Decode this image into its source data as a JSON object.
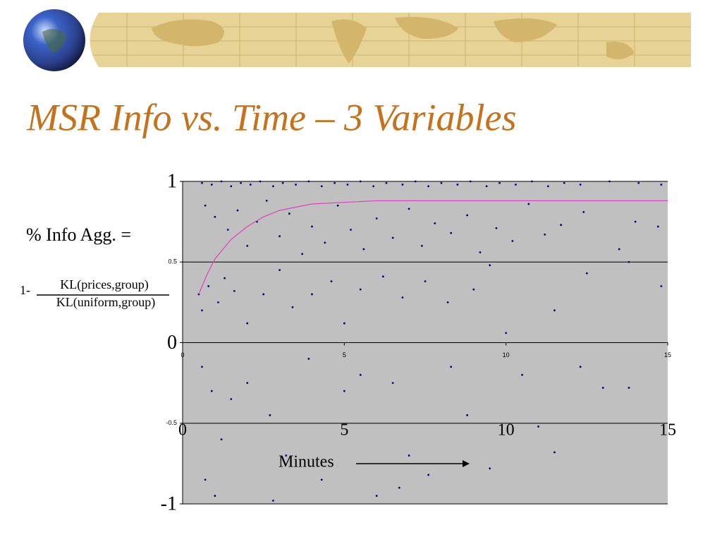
{
  "chart_data": {
    "type": "scatter",
    "title": "MSR Info vs. Time – 3 Variables",
    "y_label": "% Info Agg. =",
    "formula_prefix": "1-",
    "formula_numerator": "KL(prices,group)",
    "formula_denominator": "KL(uniform,group)",
    "x_label": "Minutes",
    "xlim": [
      0,
      15
    ],
    "ylim": [
      -1,
      1
    ],
    "xticks": [
      0,
      5,
      10,
      15
    ],
    "yticks": [
      -1,
      -0.5,
      0,
      0.5,
      1
    ],
    "grid": true,
    "series": [
      {
        "kind": "points",
        "color": "#000080",
        "x": [
          0.6,
          0.9,
          1.2,
          1.5,
          1.8,
          2.1,
          2.4,
          2.8,
          3.1,
          3.5,
          3.9,
          4.3,
          4.7,
          5.1,
          5.5,
          5.9,
          6.3,
          6.8,
          7.2,
          7.6,
          8.0,
          8.5,
          8.9,
          9.4,
          9.8,
          10.3,
          10.8,
          11.3,
          11.8,
          12.3,
          13.2,
          14.1,
          14.8,
          0.7,
          1.0,
          1.4,
          1.7,
          2.0,
          2.3,
          2.6,
          3.0,
          3.3,
          3.7,
          4.0,
          4.4,
          4.8,
          5.2,
          5.6,
          6.0,
          6.5,
          7.0,
          7.4,
          7.8,
          8.3,
          8.8,
          9.2,
          9.7,
          10.2,
          10.7,
          11.2,
          11.7,
          12.4,
          13.5,
          14.0,
          14.7,
          0.5,
          0.6,
          0.8,
          1.1,
          1.3,
          1.6,
          2.0,
          2.5,
          3.0,
          3.4,
          4.0,
          4.6,
          5.0,
          5.5,
          6.2,
          6.8,
          7.5,
          8.2,
          9.0,
          9.5,
          10.0,
          11.5,
          12.5,
          13.8,
          14.8,
          0.6,
          0.9,
          1.2,
          1.5,
          2.0,
          2.7,
          3.2,
          3.9,
          4.3,
          5.0,
          5.5,
          6.0,
          6.5,
          7.0,
          7.6,
          8.3,
          8.8,
          9.5,
          10.5,
          11.0,
          11.5,
          12.3,
          13.0,
          13.8,
          0.7,
          1.0,
          2.8,
          6.7
        ],
        "values": [
          0.99,
          0.98,
          1.0,
          0.97,
          0.99,
          0.98,
          1.0,
          0.97,
          0.99,
          0.98,
          1.0,
          0.97,
          0.99,
          0.98,
          1.0,
          0.97,
          0.99,
          0.98,
          1.0,
          0.97,
          0.99,
          0.98,
          1.0,
          0.97,
          0.99,
          0.98,
          1.0,
          0.97,
          0.99,
          0.98,
          1.0,
          0.99,
          0.98,
          0.85,
          0.78,
          0.7,
          0.82,
          0.6,
          0.75,
          0.88,
          0.66,
          0.8,
          0.55,
          0.72,
          0.62,
          0.85,
          0.7,
          0.58,
          0.77,
          0.65,
          0.83,
          0.6,
          0.74,
          0.68,
          0.79,
          0.56,
          0.71,
          0.63,
          0.86,
          0.67,
          0.73,
          0.81,
          0.58,
          0.75,
          0.72,
          0.3,
          0.2,
          0.35,
          0.25,
          0.4,
          0.32,
          0.12,
          0.3,
          0.45,
          0.22,
          0.3,
          0.38,
          0.12,
          0.33,
          0.41,
          0.28,
          0.38,
          0.25,
          0.33,
          0.48,
          0.06,
          0.2,
          0.43,
          0.5,
          0.35,
          -0.15,
          -0.3,
          -0.6,
          -0.35,
          -0.25,
          -0.45,
          -0.7,
          -0.1,
          -0.85,
          -0.3,
          -0.2,
          -0.95,
          -0.25,
          -0.7,
          -0.82,
          -0.15,
          -0.45,
          -0.78,
          -0.2,
          -0.52,
          -0.68,
          -0.15,
          -0.28,
          -0.28,
          -0.85,
          -0.95,
          -0.98,
          -0.9
        ]
      },
      {
        "kind": "trend",
        "color": "#e040c0",
        "x": [
          0.5,
          0.75,
          1,
          1.5,
          2,
          2.5,
          3,
          4,
          5,
          6,
          8,
          10,
          12,
          15
        ],
        "values": [
          0.3,
          0.42,
          0.52,
          0.64,
          0.72,
          0.78,
          0.82,
          0.86,
          0.87,
          0.88,
          0.88,
          0.88,
          0.88,
          0.88
        ]
      }
    ]
  }
}
